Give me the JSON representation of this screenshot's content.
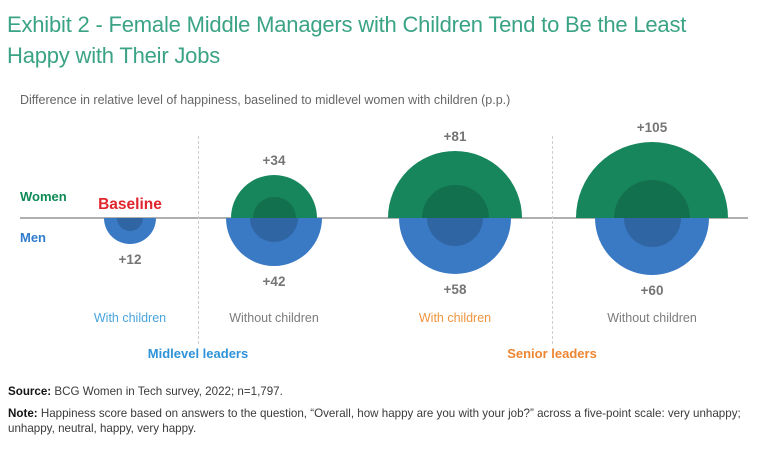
{
  "title": "Exhibit 2 - Female Middle Managers with Children Tend to Be the Least Happy with Their Jobs",
  "subtitle": "Difference in relative level of happiness, baselined to midlevel women with children (p.p.)",
  "legend": {
    "women_label": "Women",
    "men_label": "Men"
  },
  "colors": {
    "title": "#3BA385",
    "women_bubble": "#17865D",
    "men_bubble": "#3A79C4",
    "women_legend": "#0E8A55",
    "men_legend": "#2F7CCE",
    "baseline_text": "#E0262C",
    "value_label": "#757575",
    "midlevel_accent": "#2E93D8",
    "midlevel_category": "#49A5DD",
    "senior_accent": "#EE8631",
    "senior_category": "#F0953F",
    "neutral_category": "#7C7C7C",
    "baseline_line": "#AFAFAF",
    "divider": "#CFCFCF"
  },
  "chart_data": {
    "type": "bar",
    "variant": "area-proportional semicircles above (Women) and below (Men) a zero baseline",
    "unit": "p.p.",
    "baseline_label": "Baseline",
    "categories": [
      "With children",
      "Without children",
      "With children",
      "Without children"
    ],
    "category_accents": [
      "midlevel_category",
      "neutral_category",
      "senior_category",
      "neutral_category"
    ],
    "sections": [
      {
        "label": "Midlevel leaders",
        "categories_span": [
          0,
          1
        ]
      },
      {
        "label": "Senior leaders",
        "categories_span": [
          2,
          3
        ]
      }
    ],
    "series": [
      {
        "name": "Women",
        "direction": "up",
        "values": [
          0,
          34,
          81,
          105
        ],
        "labels": [
          "Baseline",
          "+34",
          "+81",
          "+105"
        ]
      },
      {
        "name": "Men",
        "direction": "down",
        "values": [
          12,
          42,
          58,
          60
        ],
        "labels": [
          "+12",
          "+42",
          "+58",
          "+60"
        ]
      }
    ]
  },
  "footer": {
    "source_label": "Source:",
    "source_text": " BCG Women in Tech survey, 2022; n=1,797.",
    "note_label": "Note:",
    "note_text": " Happiness score based on answers to the question, “Overall, how happy are you with your job?” across a five-point scale: very unhappy; unhappy, neutral, happy, very happy."
  }
}
